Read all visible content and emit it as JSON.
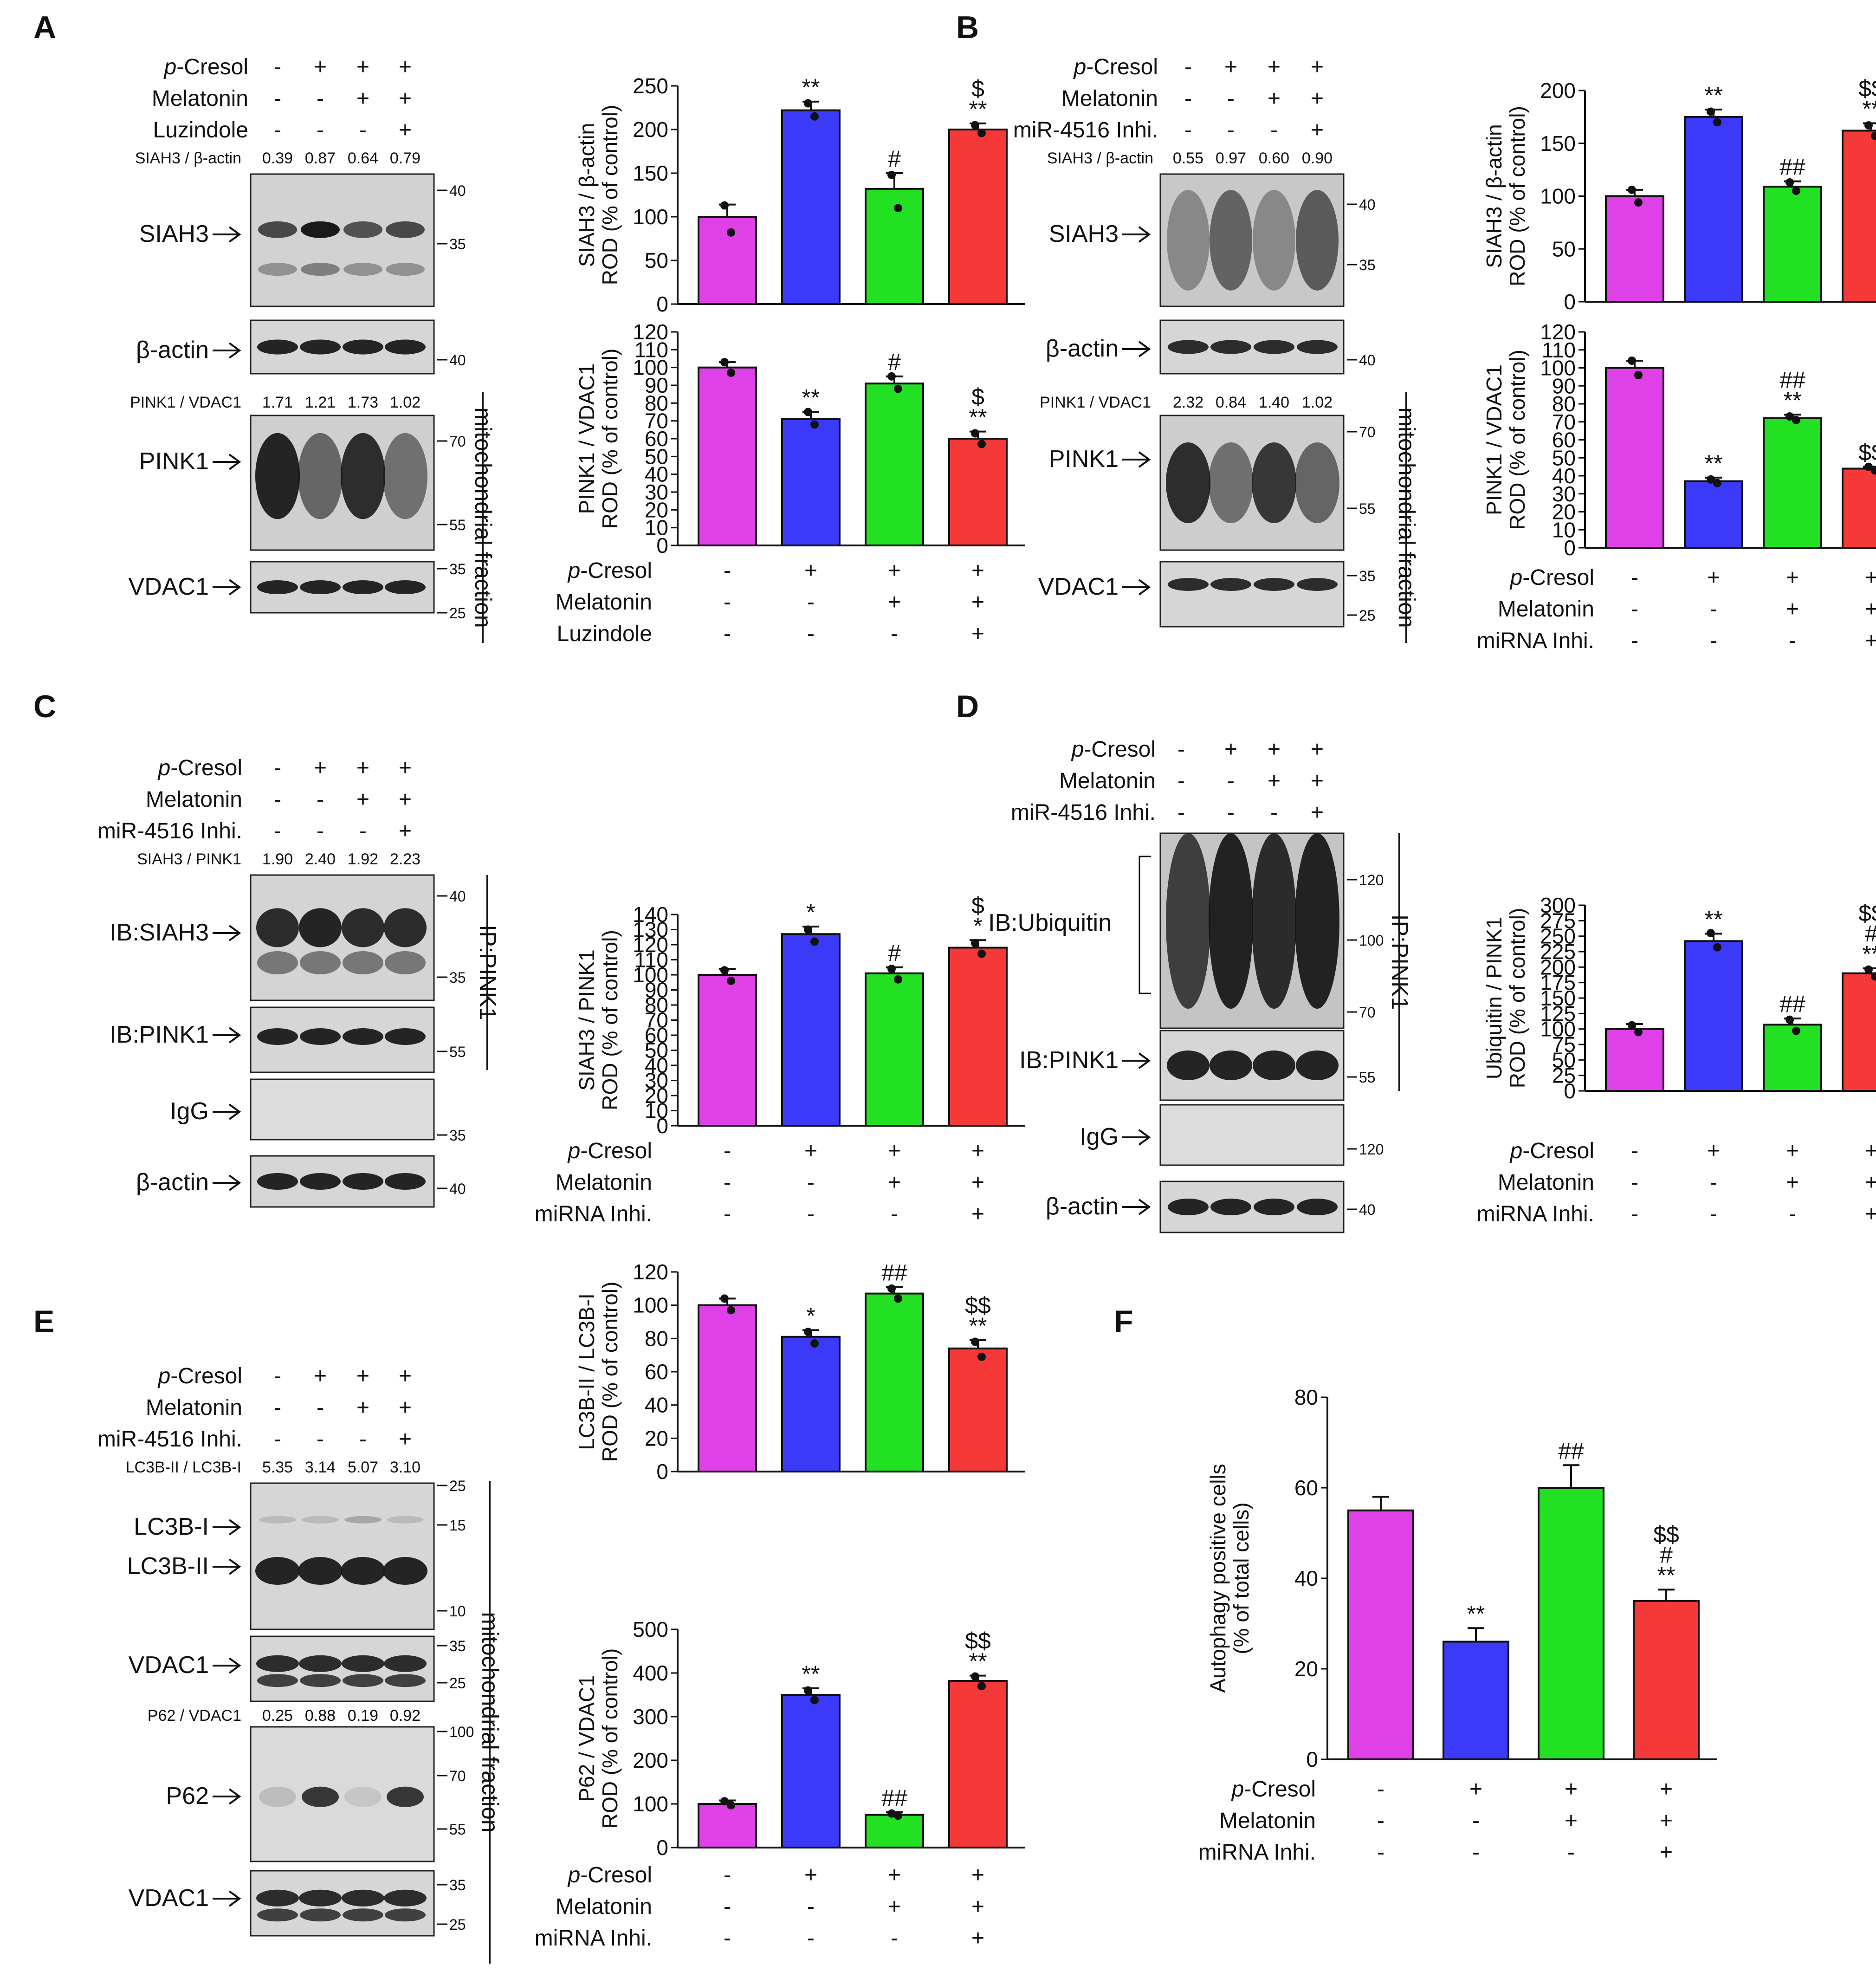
{
  "colors": {
    "c1": "#e040e8",
    "c2": "#3a3af8",
    "c3": "#22e022",
    "c4": "#f53838",
    "blot_bg": "#d4d4d4",
    "band": "#1a1a1a"
  },
  "treat_sets": {
    "A": [
      [
        "p-Cresol",
        "-",
        "+",
        "+",
        "+"
      ],
      [
        "Melatonin",
        "-",
        "-",
        "+",
        "+"
      ],
      [
        "Luzindole",
        "-",
        "-",
        "-",
        "+"
      ]
    ],
    "A_chart": [
      [
        "p-Cresol",
        "-",
        "+",
        "+",
        "+"
      ],
      [
        "Melatonin",
        "-",
        "-",
        "+",
        "+"
      ],
      [
        "Luzindole",
        "-",
        "-",
        "-",
        "+"
      ]
    ],
    "inh": [
      [
        "p-Cresol",
        "-",
        "+",
        "+",
        "+"
      ],
      [
        "Melatonin",
        "-",
        "-",
        "+",
        "+"
      ],
      [
        "miR-4516 Inhi.",
        "-",
        "-",
        "-",
        "+"
      ]
    ],
    "chart_inh": [
      [
        "p-Cresol",
        "-",
        "+",
        "+",
        "+"
      ],
      [
        "Melatonin",
        "-",
        "-",
        "+",
        "+"
      ],
      [
        "miRNA Inhi.",
        "-",
        "-",
        "-",
        "+"
      ]
    ]
  },
  "blots": {
    "A": {
      "letter": "A",
      "ratios": [
        {
          "label": "SIAH3 / β-actin",
          "values": [
            "0.39",
            "0.87",
            "0.64",
            "0.79"
          ]
        },
        {
          "label": "PINK1 / VDAC1",
          "values": [
            "1.71",
            "1.21",
            "1.73",
            "1.02"
          ]
        }
      ],
      "bands": [
        {
          "label": "SIAH3",
          "markers": [
            "40",
            "35"
          ]
        },
        {
          "label": "β-actin",
          "markers": [
            "40"
          ]
        },
        {
          "label": "PINK1",
          "markers": [
            "70",
            "55"
          ]
        },
        {
          "label": "VDAC1",
          "markers": [
            "35",
            "25"
          ]
        }
      ],
      "side": [
        "mitochondrial fraction"
      ]
    },
    "B": {
      "letter": "B",
      "ratios": [
        {
          "label": "SIAH3 / β-actin",
          "values": [
            "0.55",
            "0.97",
            "0.60",
            "0.90"
          ]
        },
        {
          "label": "PINK1 / VDAC1",
          "values": [
            "2.32",
            "0.84",
            "1.40",
            "1.02"
          ]
        }
      ],
      "bands": [
        {
          "label": "SIAH3",
          "markers": [
            "40",
            "35"
          ]
        },
        {
          "label": "β-actin",
          "markers": [
            "40"
          ]
        },
        {
          "label": "PINK1",
          "markers": [
            "70",
            "55"
          ]
        },
        {
          "label": "VDAC1",
          "markers": [
            "35",
            "25"
          ]
        }
      ],
      "side": [
        "mitochondrial fraction"
      ]
    },
    "C": {
      "letter": "C",
      "ratios": [
        {
          "label": "SIAH3 / PINK1",
          "values": [
            "1.90",
            "2.40",
            "1.92",
            "2.23"
          ]
        }
      ],
      "bands": [
        {
          "label": "IB:SIAH3",
          "markers": [
            "40",
            "35"
          ]
        },
        {
          "label": "IB:PINK1",
          "markers": [
            "55"
          ]
        },
        {
          "label": "IgG",
          "markers": [
            "35"
          ]
        },
        {
          "label": "β-actin",
          "markers": [
            "40"
          ]
        }
      ],
      "side": [
        "IP:PINK1"
      ]
    },
    "D": {
      "letter": "D",
      "ratios": [],
      "bands": [
        {
          "label": "IB:Ubiquitin",
          "markers": [
            "120",
            "100",
            "70"
          ]
        },
        {
          "label": "IB:PINK1",
          "markers": [
            "55"
          ]
        },
        {
          "label": "IgG",
          "markers": [
            "120"
          ]
        },
        {
          "label": "β-actin",
          "markers": [
            "40"
          ]
        }
      ],
      "side": [
        "IP:PINK1"
      ]
    },
    "E": {
      "letter": "E",
      "ratios": [
        {
          "label": "LC3B-II / LC3B-I",
          "values": [
            "5.35",
            "3.14",
            "5.07",
            "3.10"
          ]
        },
        {
          "label": "P62 / VDAC1",
          "values": [
            "0.25",
            "0.88",
            "0.19",
            "0.92"
          ]
        }
      ],
      "bands": [
        {
          "label": "LC3B-I",
          "markers": [
            "25",
            "15"
          ]
        },
        {
          "label": "LC3B-II",
          "markers": [
            "10"
          ]
        },
        {
          "label": "VDAC1",
          "markers": [
            "35",
            "25"
          ]
        },
        {
          "label": "P62",
          "markers": [
            "100",
            "70",
            "55"
          ]
        },
        {
          "label": "VDAC1",
          "markers": [
            "35",
            "25"
          ]
        }
      ],
      "side": [
        "mitochondrial fraction"
      ]
    },
    "F": {
      "letter": "F"
    }
  },
  "chart_data": [
    {
      "id": "A1",
      "type": "bar",
      "title": "",
      "ylabel": [
        "SIAH3 / β-actin",
        "ROD (% of control)"
      ],
      "ylim": [
        0,
        250
      ],
      "ticks": [
        0,
        50,
        100,
        150,
        200,
        250
      ],
      "categories": [
        "1",
        "2",
        "3",
        "4"
      ],
      "values": [
        100,
        222,
        132,
        200
      ],
      "errors": [
        14,
        10,
        18,
        7
      ],
      "points": [
        [
          113,
          82
        ],
        [
          230,
          215
        ],
        [
          148,
          110
        ],
        [
          205,
          196
        ]
      ],
      "sig": [
        [],
        [
          "**"
        ],
        [
          "#"
        ],
        [
          "**",
          "$"
        ]
      ]
    },
    {
      "id": "A2",
      "type": "bar",
      "title": "",
      "ylabel": [
        "PINK1 / VDAC1",
        "ROD (% of control)"
      ],
      "ylim": [
        0,
        120
      ],
      "ticks": [
        0,
        10,
        20,
        30,
        40,
        50,
        60,
        70,
        80,
        90,
        100,
        110,
        120
      ],
      "categories": [
        "1",
        "2",
        "3",
        "4"
      ],
      "values": [
        100,
        71,
        91,
        60
      ],
      "errors": [
        3,
        4,
        4,
        4
      ],
      "points": [
        [
          103,
          97
        ],
        [
          75,
          68
        ],
        [
          95,
          88
        ],
        [
          63,
          57
        ]
      ],
      "sig": [
        [],
        [
          "**"
        ],
        [
          "#"
        ],
        [
          "**",
          "$"
        ]
      ]
    },
    {
      "id": "B1",
      "type": "bar",
      "ylabel": [
        "SIAH3 / β-actin",
        "ROD (% of control)"
      ],
      "ylim": [
        0,
        200
      ],
      "ticks": [
        0,
        50,
        100,
        150,
        200
      ],
      "categories": [
        "1",
        "2",
        "3",
        "4"
      ],
      "values": [
        100,
        175,
        109,
        162
      ],
      "errors": [
        6,
        7,
        5,
        7
      ],
      "points": [
        [
          106,
          94
        ],
        [
          180,
          170
        ],
        [
          113,
          105
        ],
        [
          167,
          157
        ]
      ],
      "sig": [
        [],
        [
          "**"
        ],
        [
          "##"
        ],
        [
          "**",
          "$$"
        ]
      ]
    },
    {
      "id": "B2",
      "type": "bar",
      "ylabel": [
        "PINK1 / VDAC1",
        "ROD (% of control)"
      ],
      "ylim": [
        0,
        120
      ],
      "ticks": [
        0,
        10,
        20,
        30,
        40,
        50,
        60,
        70,
        80,
        90,
        100,
        110,
        120
      ],
      "categories": [
        "1",
        "2",
        "3",
        "4"
      ],
      "values": [
        100,
        37,
        72,
        44
      ],
      "errors": [
        4,
        2,
        2,
        1
      ],
      "points": [
        [
          104,
          96
        ],
        [
          38,
          36
        ],
        [
          73,
          71
        ],
        [
          45,
          43
        ]
      ],
      "sig": [
        [],
        [
          "**"
        ],
        [
          "**",
          "##"
        ],
        [
          "$$"
        ]
      ]
    },
    {
      "id": "C1",
      "type": "bar",
      "ylabel": [
        "SIAH3 / PINK1",
        "ROD (% of control)"
      ],
      "ylim": [
        0,
        140
      ],
      "ticks": [
        0,
        10,
        20,
        30,
        40,
        50,
        60,
        70,
        80,
        90,
        100,
        110,
        120,
        130,
        140
      ],
      "categories": [
        "1",
        "2",
        "3",
        "4"
      ],
      "values": [
        100,
        127,
        101,
        118
      ],
      "errors": [
        4,
        5,
        4,
        5
      ],
      "points": [
        [
          103,
          96
        ],
        [
          130,
          122
        ],
        [
          104,
          97
        ],
        [
          121,
          114
        ]
      ],
      "sig": [
        [],
        [
          "*"
        ],
        [
          "#"
        ],
        [
          "*",
          "$"
        ]
      ]
    },
    {
      "id": "D1",
      "type": "bar",
      "ylabel": [
        "Ubiquitin / PINK1",
        "ROD (% of control)"
      ],
      "ylim": [
        0,
        300
      ],
      "ticks": [
        0,
        25,
        50,
        75,
        100,
        125,
        150,
        175,
        200,
        225,
        250,
        275,
        300
      ],
      "categories": [
        "1",
        "2",
        "3",
        "4"
      ],
      "values": [
        100,
        242,
        107,
        190
      ],
      "errors": [
        8,
        12,
        10,
        8
      ],
      "points": [
        [
          106,
          95
        ],
        [
          255,
          232
        ],
        [
          115,
          97
        ],
        [
          196,
          185
        ]
      ],
      "sig": [
        [],
        [
          "**"
        ],
        [
          "##"
        ],
        [
          "**",
          "#",
          "$$"
        ]
      ]
    },
    {
      "id": "E1",
      "type": "bar",
      "ylabel": [
        "LC3B-II / LC3B-I",
        "ROD (% of control)"
      ],
      "ylim": [
        0,
        120
      ],
      "ticks": [
        0,
        20,
        40,
        60,
        80,
        100,
        120
      ],
      "categories": [
        "1",
        "2",
        "3",
        "4"
      ],
      "values": [
        100,
        81,
        107,
        74
      ],
      "errors": [
        4,
        4,
        4,
        5
      ],
      "points": [
        [
          104,
          97
        ],
        [
          84,
          77
        ],
        [
          110,
          104
        ],
        [
          78,
          69
        ]
      ],
      "sig": [
        [],
        [
          "*"
        ],
        [
          "##"
        ],
        [
          "**",
          "$$"
        ]
      ]
    },
    {
      "id": "E2",
      "type": "bar",
      "ylabel": [
        "P62 / VDAC1",
        "ROD (% of control)"
      ],
      "ylim": [
        0,
        500
      ],
      "ticks": [
        0,
        100,
        200,
        300,
        400,
        500
      ],
      "categories": [
        "1",
        "2",
        "3",
        "4"
      ],
      "values": [
        100,
        350,
        75,
        382
      ],
      "errors": [
        8,
        15,
        6,
        12
      ],
      "points": [
        [
          106,
          97
        ],
        [
          360,
          338
        ],
        [
          78,
          73
        ],
        [
          392,
          370
        ]
      ],
      "sig": [
        [],
        [
          "**"
        ],
        [
          "##"
        ],
        [
          "**",
          "$$"
        ]
      ]
    },
    {
      "id": "F1",
      "type": "bar",
      "ylabel": [
        "Autophagy positive cells",
        "(% of total cells)"
      ],
      "ylim": [
        0,
        80
      ],
      "ticks": [
        0,
        20,
        40,
        60,
        80
      ],
      "categories": [
        "1",
        "2",
        "3",
        "4"
      ],
      "values": [
        55,
        26,
        60,
        35
      ],
      "errors": [
        3,
        3,
        5,
        2.5
      ],
      "points": [],
      "sig": [
        [],
        [
          "**"
        ],
        [
          "##"
        ],
        [
          "**",
          "#",
          "$$"
        ]
      ]
    }
  ]
}
